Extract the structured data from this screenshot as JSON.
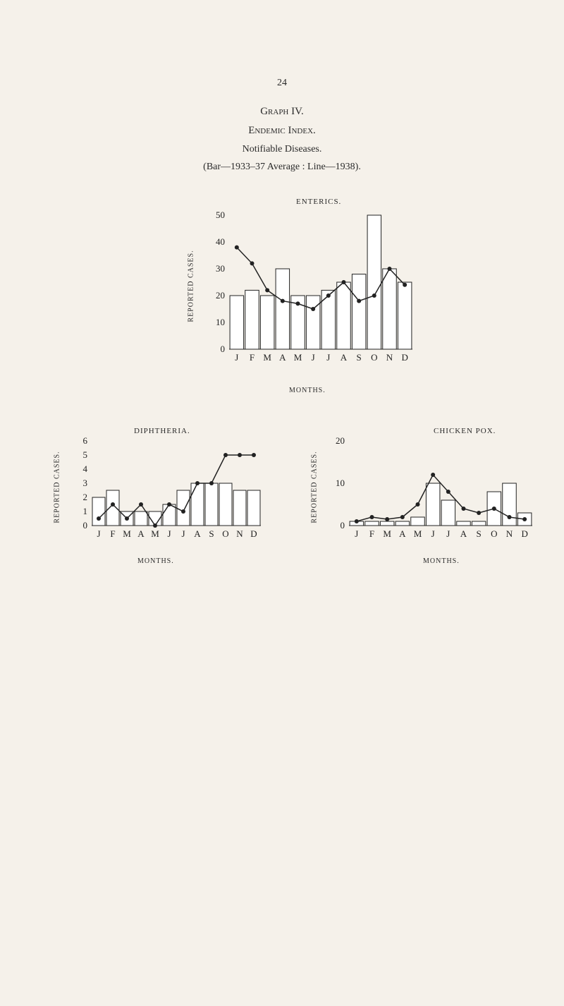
{
  "page_number": "24",
  "header": {
    "graph_title": "Graph IV.",
    "subtitle1": "Endemic Index.",
    "subtitle2": "Notifiable Diseases.",
    "subtitle3": "(Bar—1933–37 Average : Line—1938)."
  },
  "labels": {
    "y_axis": "REPORTED CASES.",
    "x_axis": "MONTHS.",
    "months": [
      "J",
      "F",
      "M",
      "A",
      "M",
      "J",
      "J",
      "A",
      "S",
      "O",
      "N",
      "D"
    ]
  },
  "enterics": {
    "title": "ENTERICS.",
    "type": "bar+line",
    "ylim": [
      0,
      50
    ],
    "yticks": [
      0,
      10,
      20,
      30,
      40,
      50
    ],
    "bar_values": [
      20,
      22,
      20,
      30,
      20,
      20,
      22,
      25,
      28,
      50,
      30,
      25
    ],
    "line_values": [
      38,
      32,
      22,
      18,
      17,
      15,
      20,
      25,
      18,
      20,
      30,
      24
    ],
    "bar_color": "#ffffff",
    "bar_border": "#222222",
    "line_color": "#222222",
    "background": "#f5f1ea",
    "font_size": 13
  },
  "diphtheria": {
    "title": "DIPHTHERIA.",
    "type": "bar+line",
    "ylim": [
      0,
      6
    ],
    "yticks": [
      0,
      1,
      2,
      3,
      4,
      5,
      6
    ],
    "bar_values": [
      2,
      2.5,
      1,
      1,
      1,
      1.5,
      2.5,
      3,
      3,
      3,
      2.5,
      2.5
    ],
    "line_values": [
      0.5,
      1.5,
      0.5,
      1.5,
      0,
      1.5,
      1,
      3,
      3,
      5,
      5,
      5
    ],
    "bar_color": "#ffffff",
    "bar_border": "#222222",
    "line_color": "#222222",
    "background": "#f5f1ea",
    "font_size": 13
  },
  "chickenpox": {
    "title": "CHICKEN POX.",
    "type": "bar+line",
    "ylim": [
      0,
      20
    ],
    "yticks": [
      0,
      10,
      20
    ],
    "bar_values": [
      1,
      1,
      1,
      1,
      2,
      10,
      6,
      1,
      1,
      8,
      10,
      3
    ],
    "line_values": [
      1,
      2,
      1.5,
      2,
      5,
      12,
      8,
      4,
      3,
      4,
      2,
      1.5
    ],
    "bar_color": "#ffffff",
    "bar_border": "#222222",
    "line_color": "#222222",
    "background": "#f5f1ea",
    "font_size": 13
  },
  "chart_style": {
    "line_width": 1.5,
    "marker_size": 3,
    "bar_width_ratio": 0.9,
    "border_color": "#222222"
  }
}
